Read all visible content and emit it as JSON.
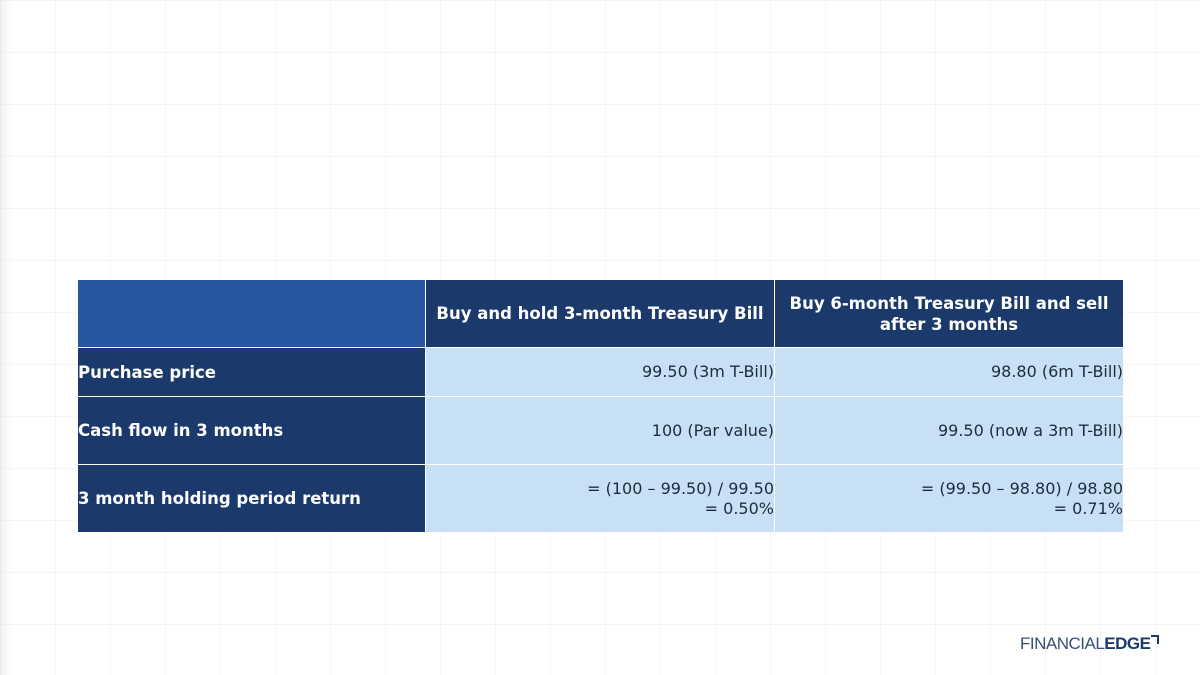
{
  "table": {
    "headers": [
      "",
      "Buy and hold 3-month Treasury Bill",
      "Buy 6-month Treasury Bill and sell after 3 months"
    ],
    "rows": [
      {
        "label": "Purchase price",
        "col1": [
          "99.50 (3m T-Bill)"
        ],
        "col2": [
          "98.80 (6m T-Bill)"
        ]
      },
      {
        "label": "Cash flow in 3 months",
        "col1": [
          "100 (Par value)"
        ],
        "col2": [
          "99.50 (now a 3m T-Bill)"
        ]
      },
      {
        "label": "3 month holding period return",
        "col1": [
          "= (100 – 99.50) / 99.50",
          "= 0.50%"
        ],
        "col2": [
          "= (99.50 – 98.80) / 98.80",
          "= 0.71%"
        ]
      }
    ]
  },
  "logo": {
    "word1": "FINANCIAL",
    "word2": "EDGE"
  },
  "colors": {
    "header_dark": "#1b3a6b",
    "header_corner": "#2657a0",
    "cell_light": "#c7e0f6"
  }
}
